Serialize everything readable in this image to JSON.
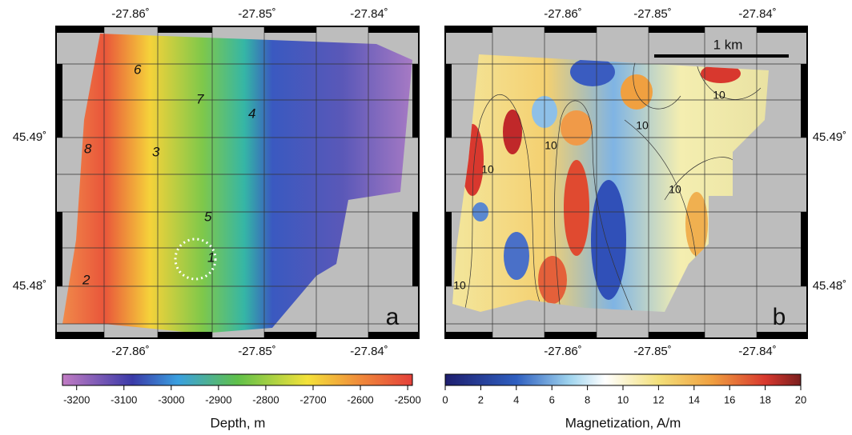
{
  "panels": [
    {
      "letter": "a",
      "x_labels": [
        "-27.86˚",
        "-27.85˚",
        "-27.84˚"
      ],
      "y_labels": [
        "45.49˚",
        "45.48˚"
      ],
      "sites": [
        "6",
        "7",
        "4",
        "8",
        "3",
        "5",
        "1",
        "2"
      ]
    },
    {
      "letter": "b",
      "x_labels": [
        "-27.86˚",
        "-27.85˚",
        "-27.84˚"
      ],
      "y_labels": [
        "45.49˚",
        "45.48˚"
      ],
      "scale_bar": "1 km",
      "contour_labels": [
        "10",
        "10",
        "10",
        "10",
        "10",
        "10"
      ]
    }
  ],
  "colorbars": [
    {
      "label": "Depth, m",
      "range": [
        -3230,
        -2490
      ],
      "ticks": [
        -3200,
        -3100,
        -3000,
        -2900,
        -2800,
        -2700,
        -2600,
        -2500
      ]
    },
    {
      "label": "Magnetization, A/m",
      "range": [
        0,
        20
      ],
      "ticks": [
        0,
        2,
        4,
        6,
        8,
        10,
        12,
        14,
        16,
        18,
        20
      ]
    }
  ]
}
